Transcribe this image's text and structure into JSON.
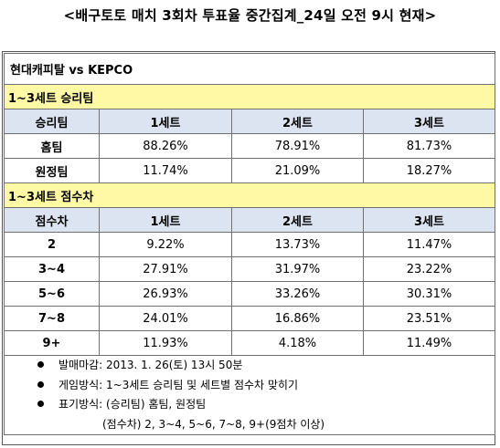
{
  "title": "<배구토토 매치 3회차 투표율 중간집계_24일 오전 9시 현재>",
  "match": "현대캐피탈 vs KEPCO",
  "section1": {
    "title": "1~3세트 승리팀",
    "headers": [
      "승리팀",
      "1세트",
      "2세트",
      "3세트"
    ],
    "rows": [
      [
        "홈팀",
        "88.26%",
        "78.91%",
        "81.73%"
      ],
      [
        "원정팀",
        "11.74%",
        "21.09%",
        "18.27%"
      ]
    ]
  },
  "section2": {
    "title": "1~3세트 점수차",
    "headers": [
      "점수차",
      "1세트",
      "2세트",
      "3세트"
    ],
    "rows": [
      [
        "2",
        "9.22%",
        "13.73%",
        "11.47%"
      ],
      [
        "3~4",
        "27.91%",
        "31.97%",
        "23.22%"
      ],
      [
        "5~6",
        "26.93%",
        "33.26%",
        "30.31%"
      ],
      [
        "7~8",
        "24.01%",
        "16.86%",
        "23.51%"
      ],
      [
        "9+",
        "11.93%",
        "4.18%",
        "11.49%"
      ]
    ]
  },
  "notes": [
    "발매마감: 2013. 1. 26(토) 13시 50분",
    "게임방식: 1~3세트 승리팀 및 세트별 점수차 맞히기",
    "표기방식: (승리팀) 홈팀, 원정팀"
  ],
  "note_continuation": "(점수차) 2, 3~4, 5~6, 7~8, 9+(9점차 이상)"
}
